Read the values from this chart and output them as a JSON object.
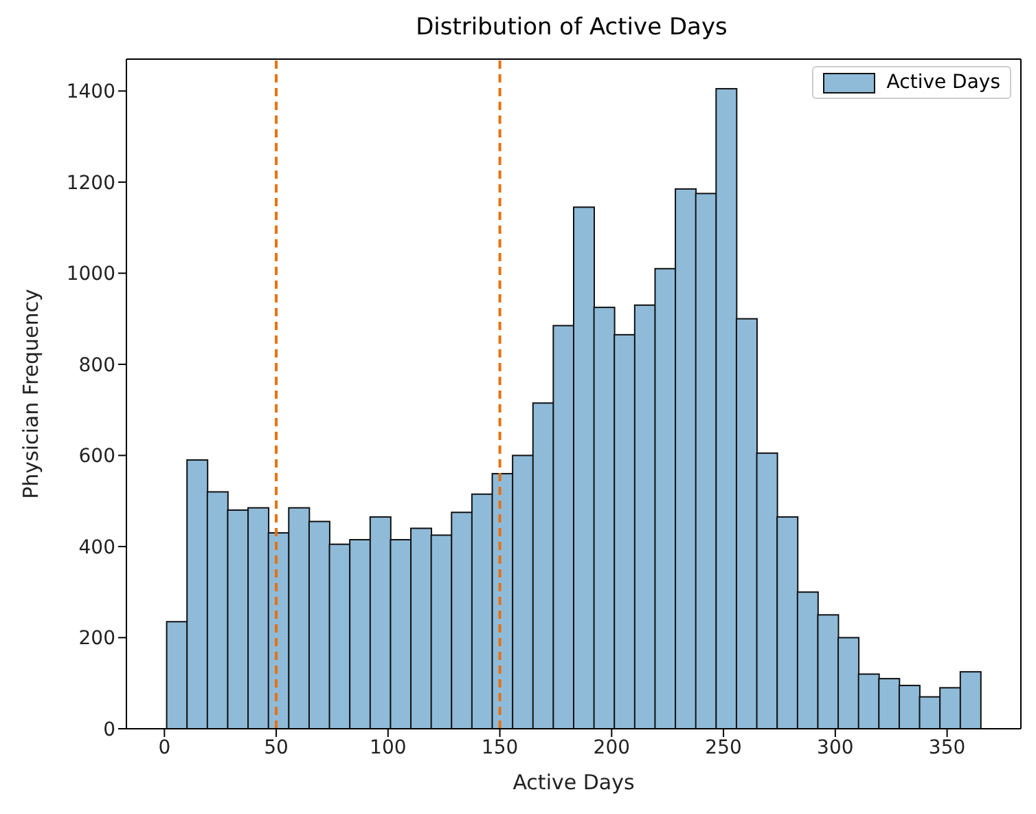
{
  "chart_data": {
    "type": "histogram",
    "title": "Distribution of Active Days",
    "xlabel": "Active Days",
    "ylabel": "Physician Frequency",
    "bins": [
      1,
      10.1,
      19.2,
      28.3,
      37.4,
      46.5,
      55.6,
      64.7,
      73.8,
      82.9,
      92,
      101.1,
      110.2,
      119.3,
      128.4,
      137.5,
      146.6,
      155.7,
      164.8,
      173.9,
      183,
      192.1,
      201.2,
      210.3,
      219.4,
      228.5,
      237.6,
      246.7,
      255.8,
      264.9,
      274,
      283.1,
      292.2,
      301.3,
      310.4,
      319.5,
      328.6,
      337.7,
      346.8,
      355.9,
      365
    ],
    "series": [
      {
        "name": "Active Days",
        "color": "#8fbbd9",
        "values": [
          235,
          590,
          520,
          480,
          485,
          430,
          485,
          455,
          405,
          415,
          465,
          415,
          440,
          425,
          475,
          515,
          560,
          600,
          715,
          885,
          1145,
          925,
          865,
          930,
          1010,
          1185,
          1175,
          1405,
          900,
          605,
          465,
          300,
          250,
          200,
          120,
          110,
          95,
          70,
          90,
          125
        ]
      }
    ],
    "xlim": [
      -17,
      383
    ],
    "ylim": [
      0,
      1470
    ],
    "xticks": [
      0,
      50,
      100,
      150,
      200,
      250,
      300,
      350
    ],
    "yticks": [
      0,
      200,
      400,
      600,
      800,
      1000,
      1200,
      1400
    ],
    "ref_lines": [
      {
        "axis": "x",
        "value": 50,
        "color": "#e8700e",
        "line_style": "dashed"
      },
      {
        "axis": "x",
        "value": 150,
        "color": "#e8700e",
        "line_style": "dashed"
      }
    ],
    "legend": "top right"
  }
}
